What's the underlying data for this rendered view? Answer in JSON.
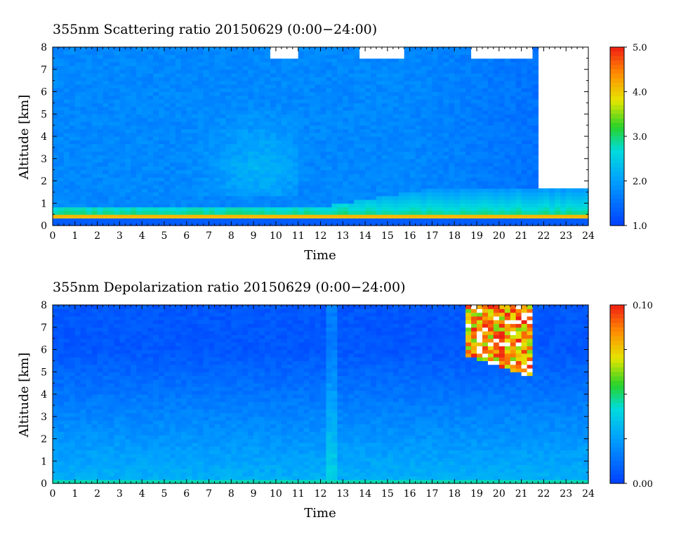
{
  "chart_data": [
    {
      "type": "heatmap",
      "title": "355nm Scattering ratio  20150629 (0:00−24:00)",
      "xlabel": "Time",
      "ylabel": "Altitude [km]",
      "xlim": [
        0,
        24
      ],
      "ylim": [
        0,
        8
      ],
      "x_ticks": [
        "0",
        "1",
        "2",
        "3",
        "4",
        "5",
        "6",
        "7",
        "8",
        "9",
        "10",
        "11",
        "12",
        "13",
        "14",
        "15",
        "16",
        "17",
        "18",
        "19",
        "20",
        "21",
        "22",
        "23",
        "24"
      ],
      "y_ticks": [
        "0",
        "1",
        "2",
        "3",
        "4",
        "5",
        "6",
        "7",
        "8"
      ],
      "colorbar": {
        "min": 1.0,
        "max": 5.0,
        "tick_labels": [
          "1.0",
          "2.0",
          "3.0",
          "4.0",
          "5.0"
        ]
      },
      "features": {
        "boundary_layer_top_km": 0.5,
        "aerosol_layer_top_km_start": 0.9,
        "aerosol_layer_top_km_end": 1.6,
        "ground_line_km": 0.35,
        "clear_background_value": 1.7,
        "no_data_after_hour": 21.8
      }
    },
    {
      "type": "heatmap",
      "title": "355nm Depolarization ratio  20150629 (0:00−24:00)",
      "xlabel": "Time",
      "ylabel": "Altitude [km]",
      "xlim": [
        0,
        24
      ],
      "ylim": [
        0,
        8
      ],
      "x_ticks": [
        "0",
        "1",
        "2",
        "3",
        "4",
        "5",
        "6",
        "7",
        "8",
        "9",
        "10",
        "11",
        "12",
        "13",
        "14",
        "15",
        "16",
        "17",
        "18",
        "19",
        "20",
        "21",
        "22",
        "23",
        "24"
      ],
      "y_ticks": [
        "0",
        "1",
        "2",
        "3",
        "4",
        "5",
        "6",
        "7",
        "8"
      ],
      "colorbar": {
        "min": 0.0,
        "max": 0.1,
        "tick_labels": [
          "0.00",
          "0.10"
        ]
      },
      "features": {
        "upper_background_value": 0.005,
        "lower_background_value": 0.03,
        "cirrus_hours": [
          18.5,
          21.5
        ],
        "cirrus_base_km": 4.8
      }
    }
  ]
}
